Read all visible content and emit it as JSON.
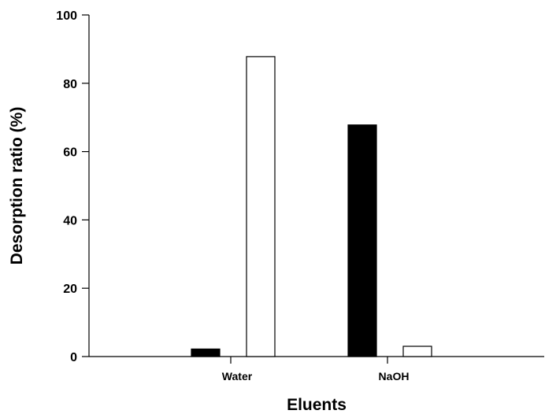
{
  "chart_data": {
    "type": "bar",
    "title": "",
    "xlabel": "Eluents",
    "ylabel": "Desorption ratio (%)",
    "categories": [
      "Water",
      "NaOH"
    ],
    "series": [
      {
        "values": [
          2.2,
          67.8
        ],
        "color": "#000000"
      },
      {
        "values": [
          87.8,
          3.0
        ],
        "color": "#ffffff"
      }
    ],
    "ylim": [
      0,
      100
    ],
    "yticks": [
      0,
      20,
      40,
      60,
      80,
      100
    ],
    "ytick_labels": [
      "0",
      "20",
      "40",
      "60",
      "80",
      "100"
    ],
    "grid": false,
    "legend": "none"
  }
}
